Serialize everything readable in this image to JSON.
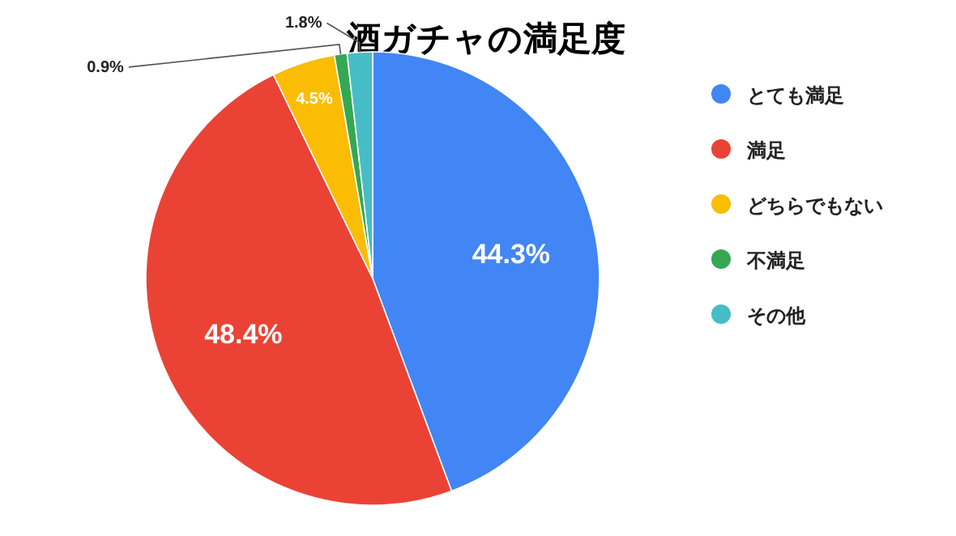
{
  "chart_data": {
    "type": "pie",
    "title": "酒ガチャの満足度",
    "categories": [
      "とても満足",
      "満足",
      "どちらでもない",
      "不満足",
      "その他"
    ],
    "values": [
      44.3,
      48.4,
      4.5,
      0.9,
      1.8
    ],
    "colors": [
      "#4285f4",
      "#ea4335",
      "#fbbc04",
      "#34a853",
      "#46bdc6"
    ],
    "value_labels": [
      "44.3%",
      "48.4%",
      "4.5%",
      "0.9%",
      "1.8%"
    ],
    "legend": "right"
  }
}
